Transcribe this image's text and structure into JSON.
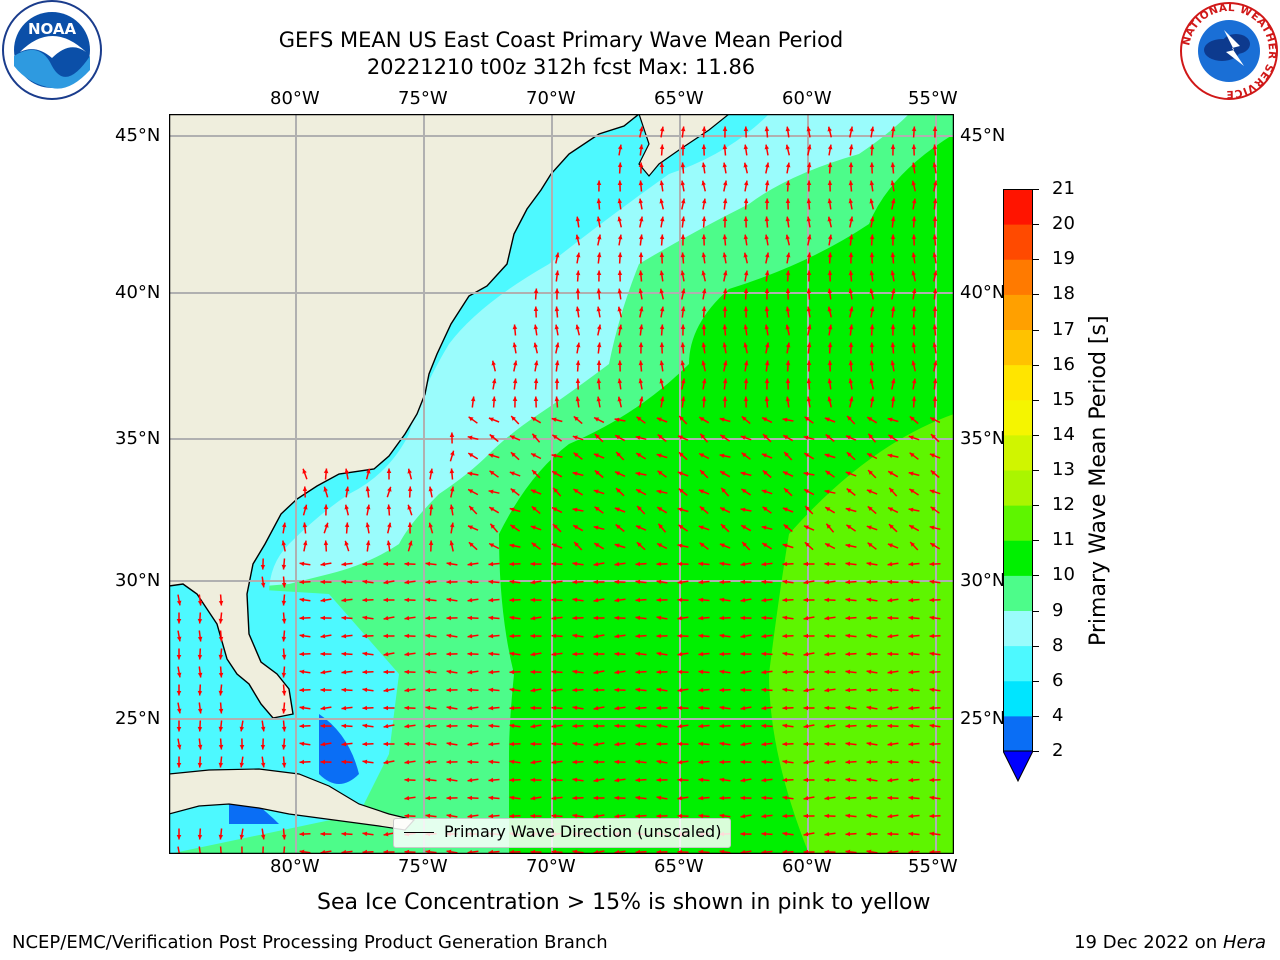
{
  "title": {
    "line1": "GEFS MEAN US East Coast Primary Wave Mean Period",
    "line2": "20221210 t00z 312h fcst   Max: 11.86"
  },
  "axes": {
    "lon_labels": [
      "80°W",
      "75°W",
      "70°W",
      "65°W",
      "60°W",
      "55°W"
    ],
    "lat_labels": [
      "45°N",
      "40°N",
      "35°N",
      "30°N",
      "25°N"
    ]
  },
  "legend": {
    "label": "Primary Wave Direction (unscaled)",
    "color": "#ff0000"
  },
  "colorbar": {
    "label": "Primary Wave Mean Period [s]",
    "ticks": [
      "2",
      "4",
      "6",
      "8",
      "9",
      "10",
      "11",
      "12",
      "13",
      "14",
      "15",
      "16",
      "17",
      "18",
      "19",
      "20",
      "21"
    ],
    "colors": [
      "#0a6ef5",
      "#00e5ff",
      "#4df9ff",
      "#9afcfc",
      "#4dfc8a",
      "#00f000",
      "#5ef500",
      "#aaf500",
      "#d0f500",
      "#f5f500",
      "#ffe500",
      "#ffc200",
      "#ffa000",
      "#ff7a00",
      "#ff4a00",
      "#ff1400"
    ],
    "extend_color": "#0000ff"
  },
  "caption": "Sea Ice Concentration > 15% is shown in pink to yellow",
  "footer": {
    "left": "NCEP/EMC/Verification Post Processing Product Generation Branch",
    "right_date": "19 Dec 2022 on ",
    "right_host": "Hera"
  },
  "logos": {
    "noaa": "NOAA",
    "nws_ring": "NATIONAL WEATHER SERVICE"
  },
  "map_colors": {
    "land": "#efeedd",
    "coast": "#000000",
    "grid": "#b0b0b0",
    "arrow": "#ff0000"
  }
}
